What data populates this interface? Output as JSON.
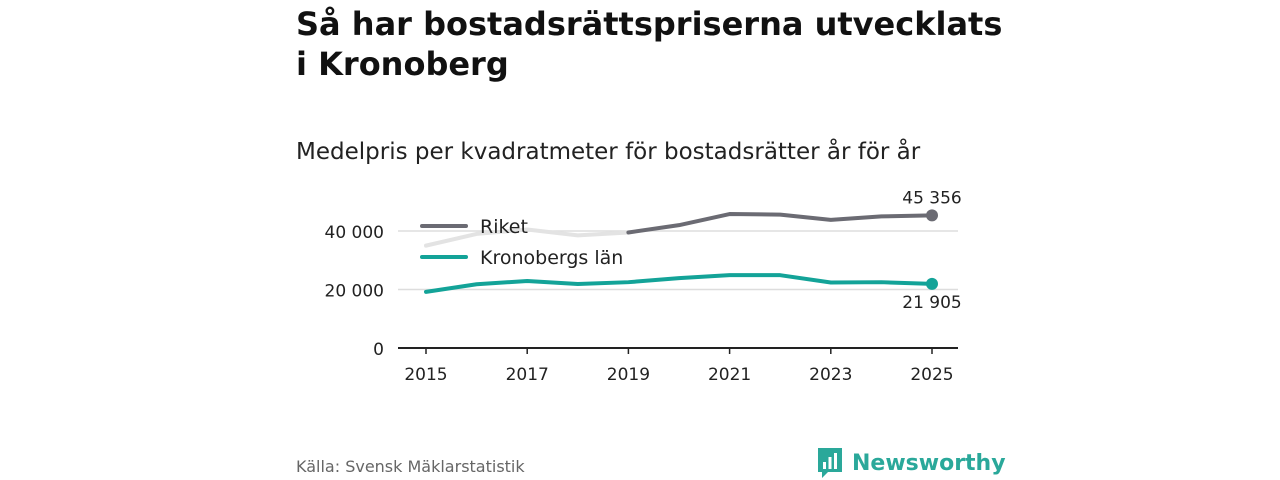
{
  "title": "Så har bostadsrättspriserna utvecklats i Kronoberg",
  "subtitle": "Medelpris per kvadratmeter för bostadsrätter år för år",
  "source": "Källa: Svensk Mäklarstatistik",
  "brand": {
    "name": "Newsworthy",
    "icon": "bar-chart-logo-icon",
    "color": "#2aa89a"
  },
  "colors": {
    "riket": "#6b6b73",
    "riket_faded": "#e3e3e3",
    "kronoberg": "#13a398",
    "grid": "#dddddd",
    "axis": "#222222"
  },
  "chart_data": {
    "type": "line",
    "x": [
      2015,
      2016,
      2017,
      2018,
      2019,
      2020,
      2021,
      2022,
      2023,
      2024,
      2025
    ],
    "series": [
      {
        "name": "Riket",
        "values": [
          35000,
          39000,
          40500,
          38500,
          39500,
          42000,
          45800,
          45600,
          43800,
          45000,
          45356
        ]
      },
      {
        "name": "Kronobergs län",
        "values": [
          19200,
          21800,
          22900,
          21900,
          22500,
          23900,
          24900,
          24900,
          22400,
          22500,
          21905
        ]
      }
    ],
    "x_ticks": [
      "2015",
      "2017",
      "2019",
      "2021",
      "2023",
      "2025"
    ],
    "y_ticks": [
      "0",
      "20 000",
      "40 000"
    ],
    "ylim": [
      0,
      48000
    ],
    "end_labels": {
      "Riket": "45 356",
      "Kronobergs län": "21 905"
    },
    "legend_position": "top-left",
    "grid": true
  }
}
